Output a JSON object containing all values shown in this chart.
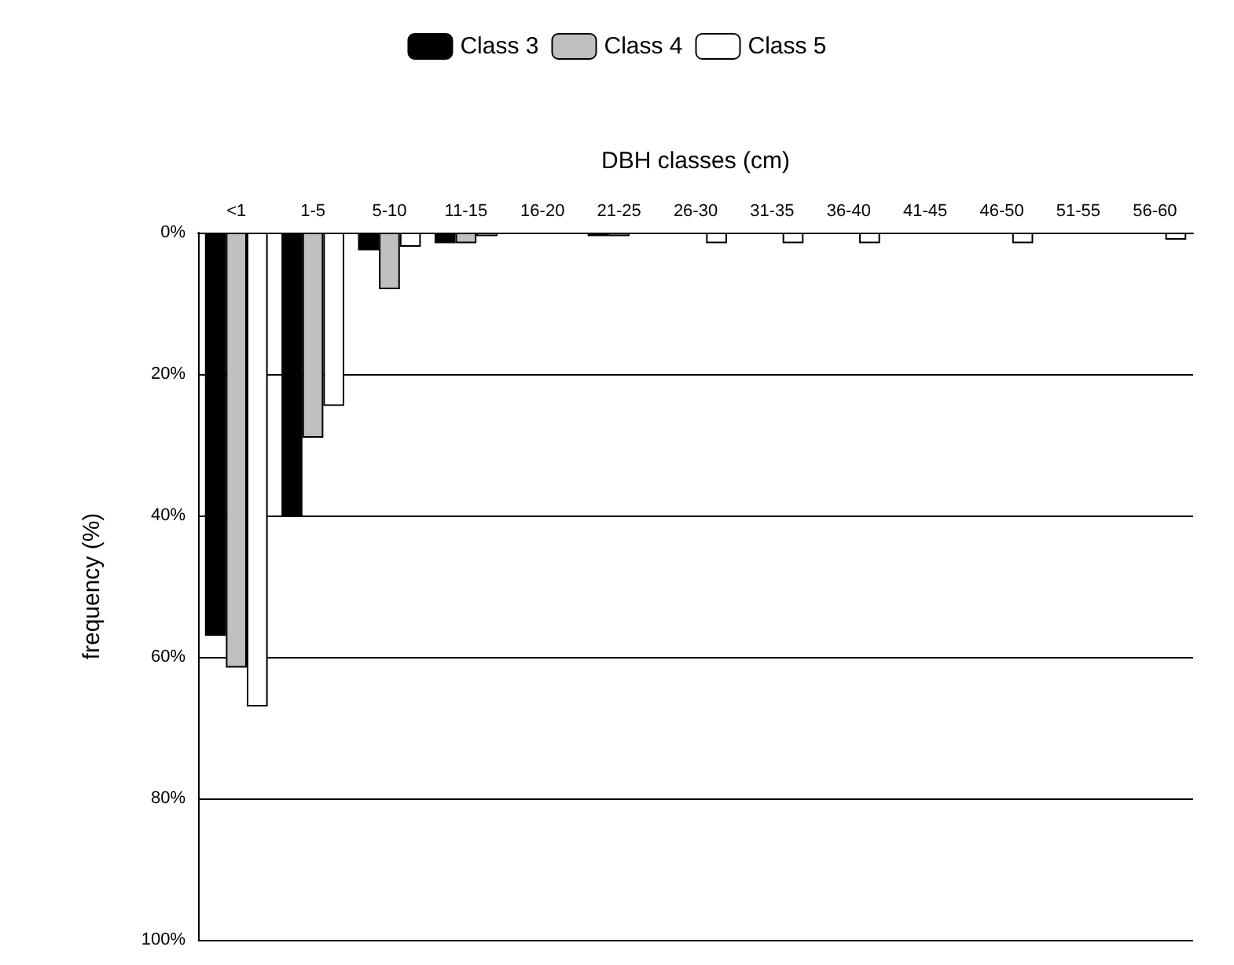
{
  "chart_data": {
    "type": "bar",
    "xlabel": "DBH classes (cm)",
    "ylabel": "frequency (%)",
    "categories": [
      "<1",
      "1-5",
      "5-10",
      "11-15",
      "16-20",
      "21-25",
      "26-30",
      "31-35",
      "36-40",
      "41-45",
      "46-50",
      "51-55",
      "56-60"
    ],
    "series": [
      {
        "name": "Class 3",
        "color": "#000000",
        "values": [
          57,
          40,
          2.5,
          1.5,
          0,
          0.5,
          0,
          0,
          0,
          0,
          0,
          0,
          0
        ]
      },
      {
        "name": "Class 4",
        "color": "#c0c0c0",
        "values": [
          61.5,
          29,
          8,
          1.5,
          0,
          0.5,
          0,
          0,
          0,
          0,
          0,
          0,
          0
        ]
      },
      {
        "name": "Class 5",
        "color": "#ffffff",
        "values": [
          67,
          24.5,
          2,
          0.5,
          0,
          0,
          1.5,
          1.5,
          1.5,
          0,
          1.5,
          0,
          1
        ]
      }
    ],
    "ylim": [
      100,
      0
    ],
    "yticks": [
      {
        "value": 0,
        "label": "0%"
      },
      {
        "value": 20,
        "label": "20%"
      },
      {
        "value": 40,
        "label": "40%"
      },
      {
        "value": 60,
        "label": "60%"
      },
      {
        "value": 80,
        "label": "80%"
      },
      {
        "value": 100,
        "label": "100%"
      }
    ],
    "grid": "y",
    "legend": "top"
  }
}
